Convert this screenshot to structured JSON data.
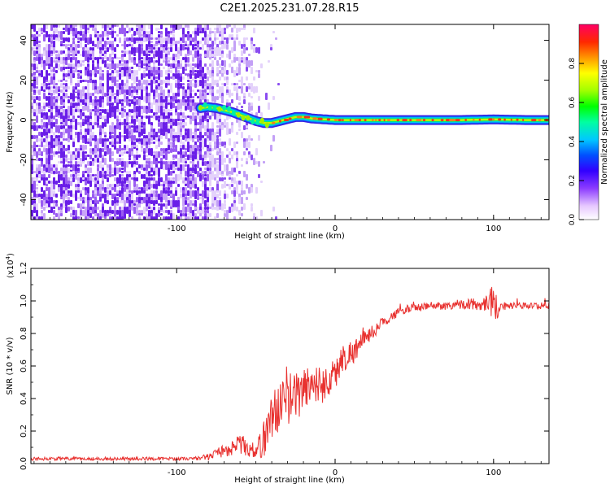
{
  "title": "C2E1.2025.231.07.28.R15",
  "chart_data": [
    {
      "type": "heatmap",
      "xlabel": "Height of straight line (km)",
      "ylabel": "Frequency (Hz)",
      "xlim": [
        -192,
        135
      ],
      "ylim": [
        -50,
        48
      ],
      "x_ticks": [
        -100,
        0,
        100
      ],
      "x_tick_labels": [
        "-100",
        "0",
        "100"
      ],
      "y_ticks": [
        40,
        20,
        0,
        -20,
        -40
      ],
      "y_tick_labels": [
        "40",
        "20",
        "0",
        "-20",
        "-40"
      ],
      "colorbar": {
        "label": "Normalized spectral amplitude",
        "range": [
          0,
          1
        ],
        "ticks": [
          0.0,
          0.2,
          0.4,
          0.6,
          0.8
        ],
        "tick_labels": [
          "0.0",
          "0.2",
          "0.4",
          "0.6",
          "0.8"
        ]
      },
      "signal_track": {
        "x": [
          -85,
          -80,
          -75,
          -70,
          -65,
          -60,
          -55,
          -50,
          -45,
          -40,
          -35,
          -30,
          -25,
          -20,
          -15,
          -10,
          0,
          20,
          40,
          60,
          80,
          100,
          120,
          135
        ],
        "frequency": [
          6,
          6.5,
          6,
          5,
          4,
          2.5,
          1,
          -0.5,
          -1.5,
          -1.5,
          -0.5,
          0.5,
          1.5,
          1.5,
          0.8,
          0.5,
          0,
          0,
          0,
          0,
          0,
          0.3,
          0,
          0
        ]
      },
      "noise_region_x": [
        -192,
        -52
      ]
    },
    {
      "type": "line",
      "xlabel": "Height of straight line (km)",
      "ylabel": "SNR (10 * v/v)",
      "y_multiplier_label": "(x10",
      "y_multiplier_exp": "4",
      "y_multiplier_close": ")",
      "xlim": [
        -192,
        135
      ],
      "ylim": [
        0,
        1.2
      ],
      "x_ticks": [
        -100,
        0,
        100
      ],
      "x_tick_labels": [
        "-100",
        "0",
        "100"
      ],
      "y_ticks": [
        0.0,
        0.2,
        0.4,
        0.6,
        0.8,
        1.0,
        1.2
      ],
      "y_tick_labels": [
        "0.0",
        "0.2",
        "0.4",
        "0.6",
        "0.8",
        "1.0",
        "1.2"
      ],
      "color": "#e8312f",
      "series": [
        {
          "x": [
            -192,
            -170,
            -150,
            -130,
            -110,
            -90,
            -80,
            -75,
            -70,
            -65,
            -60,
            -55,
            -50,
            -45,
            -40,
            -35,
            -30,
            -25,
            -20,
            -15,
            -10,
            -5,
            0,
            5,
            10,
            15,
            20,
            25,
            30,
            35,
            40,
            45,
            50,
            55,
            60,
            70,
            80,
            90,
            95,
            98,
            100,
            102,
            105,
            110,
            120,
            135
          ],
          "values": [
            0.03,
            0.03,
            0.03,
            0.03,
            0.03,
            0.03,
            0.04,
            0.06,
            0.08,
            0.1,
            0.12,
            0.1,
            0.07,
            0.15,
            0.3,
            0.35,
            0.4,
            0.42,
            0.45,
            0.5,
            0.48,
            0.5,
            0.55,
            0.65,
            0.68,
            0.72,
            0.78,
            0.82,
            0.87,
            0.9,
            0.93,
            0.95,
            0.96,
            0.96,
            0.97,
            0.97,
            0.98,
            0.98,
            0.99,
            1.0,
            1.02,
            0.95,
            0.97,
            0.97,
            0.97,
            0.97
          ],
          "noise_amplitude": [
            0.01,
            0.01,
            0.01,
            0.01,
            0.01,
            0.01,
            0.02,
            0.03,
            0.04,
            0.05,
            0.06,
            0.06,
            0.04,
            0.12,
            0.14,
            0.16,
            0.16,
            0.15,
            0.15,
            0.14,
            0.12,
            0.11,
            0.1,
            0.09,
            0.08,
            0.07,
            0.05,
            0.04,
            0.03,
            0.03,
            0.025,
            0.025,
            0.025,
            0.025,
            0.025,
            0.025,
            0.03,
            0.04,
            0.05,
            0.1,
            0.12,
            0.08,
            0.03,
            0.02,
            0.02,
            0.02
          ]
        }
      ]
    }
  ]
}
